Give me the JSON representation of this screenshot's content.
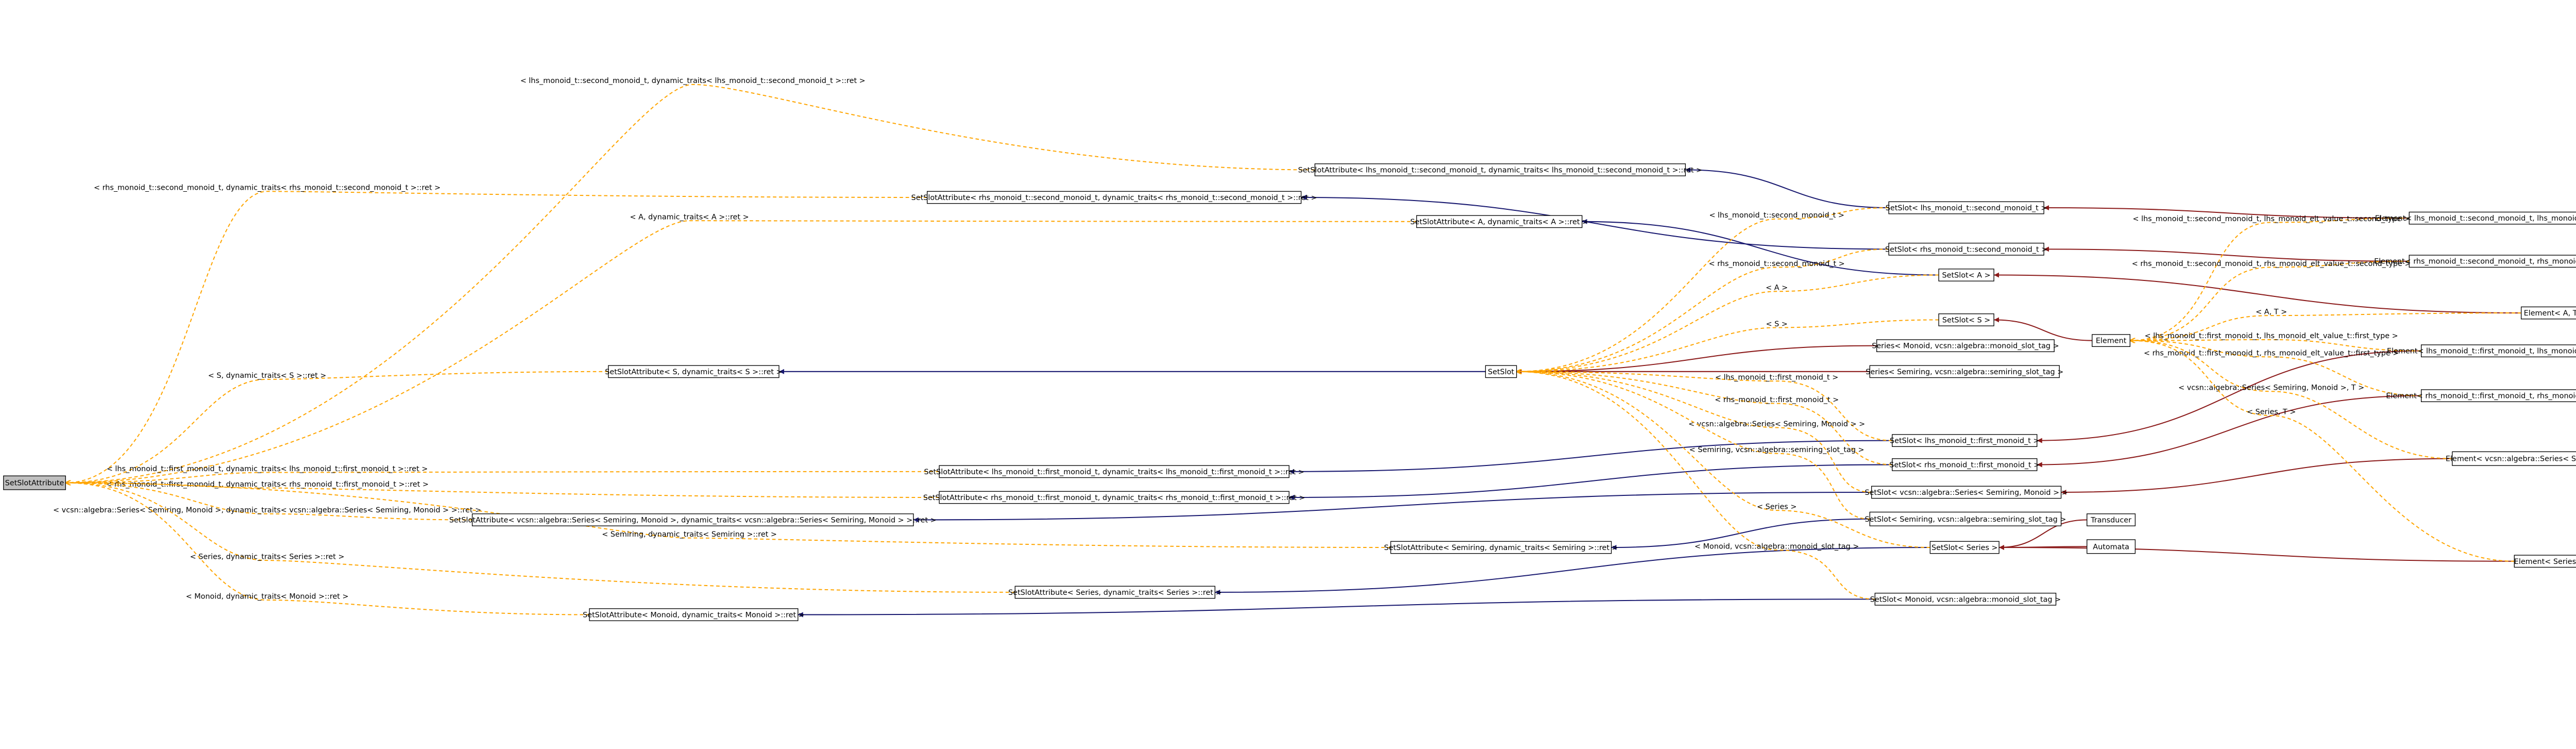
{
  "nodes": [
    "SetSlotAttribute",
    "SetSlotAttribute< lhs_monoid_t::second_monoid_t, dynamic_traits< lhs_monoid_t::second_monoid_t >::ret >",
    "SetSlotAttribute< rhs_monoid_t::second_monoid_t, dynamic_traits< rhs_monoid_t::second_monoid_t >::ret >",
    "SetSlotAttribute< A, dynamic_traits< A >::ret >",
    "SetSlotAttribute< S, dynamic_traits< S >::ret >",
    "SetSlotAttribute< lhs_monoid_t::first_monoid_t, dynamic_traits< lhs_monoid_t::first_monoid_t >::ret >",
    "SetSlotAttribute< rhs_monoid_t::first_monoid_t, dynamic_traits< rhs_monoid_t::first_monoid_t >::ret >",
    "SetSlotAttribute< vcsn::algebra::Series< Semiring, Monoid >, dynamic_traits< vcsn::algebra::Series< Semiring, Monoid > >::ret >",
    "SetSlotAttribute< Semiring, dynamic_traits< Semiring >::ret >",
    "SetSlotAttribute< Series, dynamic_traits< Series >::ret >",
    "SetSlotAttribute< Monoid, dynamic_traits< Monoid >::ret >",
    "SetSlot",
    "SetSlot< lhs_monoid_t::second_monoid_t >",
    "SetSlot< rhs_monoid_t::second_monoid_t >",
    "SetSlot< A >",
    "SetSlot< S >",
    "Series< Monoid, vcsn::algebra::monoid_slot_tag >",
    "Series< Semiring, vcsn::algebra::semiring_slot_tag >",
    "SetSlot< lhs_monoid_t::first_monoid_t >",
    "SetSlot< rhs_monoid_t::first_monoid_t >",
    "SetSlot< vcsn::algebra::Series< Semiring, Monoid > >",
    "SetSlot< Semiring, vcsn::algebra::semiring_slot_tag >",
    "SetSlot< Series >",
    "SetSlot< Monoid, vcsn::algebra::monoid_slot_tag >",
    "Transducer",
    "Automata",
    "Element",
    "Element< lhs_monoid_t::second_monoid_t, lhs_monoid_elt_value_t::second_type >",
    "Element< rhs_monoid_t::second_monoid_t, rhs_monoid_elt_value_t::second_type >",
    "Element< A, T >",
    "Element< lhs_monoid_t::first_monoid_t, lhs_monoid_elt_value_t::first_type >",
    "Element< rhs_monoid_t::first_monoid_t, rhs_monoid_elt_value_t::first_type >",
    "Element< vcsn::algebra::Series< Semiring, Monoid >, T >",
    "Element< Series, T >"
  ],
  "edge_labels": [
    "< lhs_monoid_t::second_monoid_t, dynamic_traits< lhs_monoid_t::second_monoid_t >::ret >",
    "< rhs_monoid_t::second_monoid_t, dynamic_traits< rhs_monoid_t::second_monoid_t >::ret >",
    "< A, dynamic_traits< A >::ret >",
    "< S, dynamic_traits< S >::ret >",
    "< lhs_monoid_t::first_monoid_t, dynamic_traits< lhs_monoid_t::first_monoid_t >::ret >",
    "< rhs_monoid_t::first_monoid_t, dynamic_traits< rhs_monoid_t::first_monoid_t >::ret >",
    "< vcsn::algebra::Series< Semiring, Monoid >, dynamic_traits< vcsn::algebra::Series< Semiring, Monoid > >::ret >",
    "< Semiring, dynamic_traits< Semiring >::ret >",
    "< Series, dynamic_traits< Series >::ret >",
    "< Monoid, dynamic_traits< Monoid >::ret >",
    "< lhs_monoid_t::second_monoid_t >",
    "< rhs_monoid_t::second_monoid_t >",
    "< A >",
    "< S >",
    "< lhs_monoid_t::first_monoid_t >",
    "< rhs_monoid_t::first_monoid_t >",
    "< vcsn::algebra::Series< Semiring, Monoid > >",
    "< Semiring, vcsn::algebra::semiring_slot_tag >",
    "< Series >",
    "< Monoid, vcsn::algebra::monoid_slot_tag >",
    "< lhs_monoid_t::second_monoid_t, lhs_monoid_elt_value_t::second_type >",
    "< rhs_monoid_t::second_monoid_t, rhs_monoid_elt_value_t::second_type >",
    "< A, T >",
    "< lhs_monoid_t::first_monoid_t, lhs_monoid_elt_value_t::first_type >",
    "< rhs_monoid_t::first_monoid_t, rhs_monoid_elt_value_t::first_type >",
    "< vcsn::algebra::Series< Semiring, Monoid >, T >",
    "< Series, T >"
  ]
}
